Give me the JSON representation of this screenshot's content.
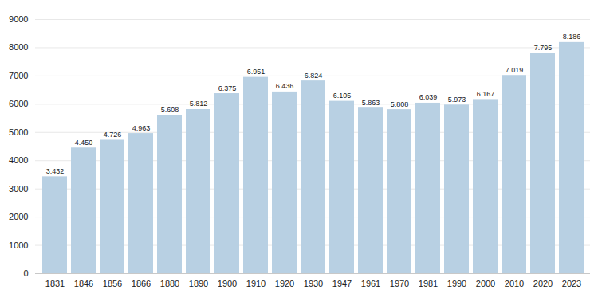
{
  "chart_data": {
    "type": "bar",
    "categories": [
      "1831",
      "1846",
      "1856",
      "1866",
      "1880",
      "1890",
      "1900",
      "1910",
      "1920",
      "1930",
      "1947",
      "1961",
      "1970",
      "1981",
      "1990",
      "2000",
      "2010",
      "2020",
      "2023"
    ],
    "values": [
      3432,
      4450,
      4726,
      4963,
      5608,
      5812,
      6375,
      6951,
      6436,
      6824,
      6105,
      5863,
      5808,
      6039,
      5973,
      6167,
      7019,
      7795,
      8186
    ],
    "value_labels": [
      "3.432",
      "4.450",
      "4.726",
      "4.963",
      "5.608",
      "5.812",
      "6.375",
      "6.951",
      "6.436",
      "6.824",
      "6.105",
      "5.863",
      "5.808",
      "6.039",
      "5.973",
      "6.167",
      "7.019",
      "7.795",
      "8.186"
    ],
    "color": "#b8d0e3",
    "ylim": [
      0,
      9000
    ],
    "yticks": [
      0,
      1000,
      2000,
      3000,
      4000,
      5000,
      6000,
      7000,
      8000,
      9000
    ],
    "grid": true,
    "data_labels": true
  }
}
